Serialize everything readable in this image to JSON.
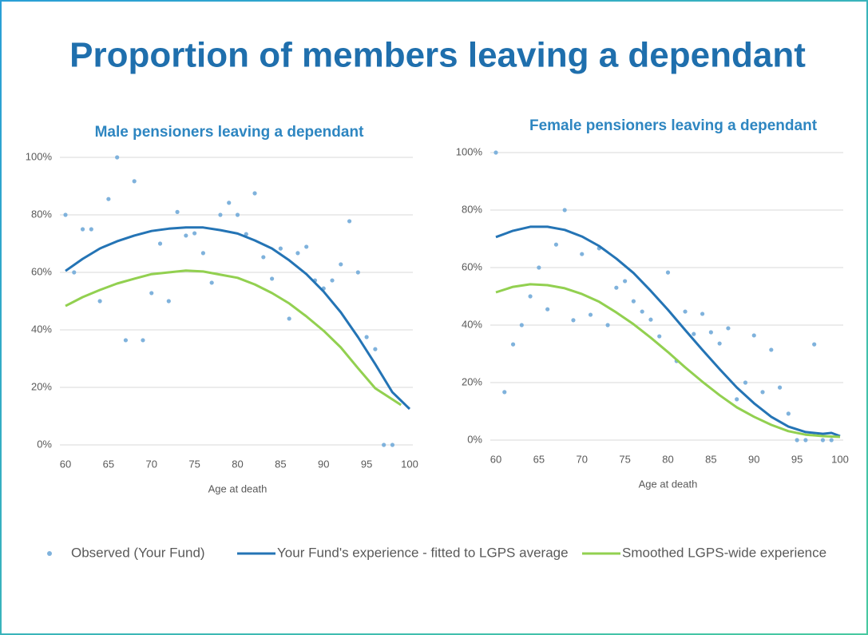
{
  "title": "Proportion of members leaving a dependant",
  "chart_data": [
    {
      "type": "scatter",
      "title": "Male pensioners leaving a dependant",
      "xlabel": "Age at death",
      "xlim": [
        60,
        100
      ],
      "xticks": [
        60,
        65,
        70,
        75,
        80,
        85,
        90,
        95,
        100
      ],
      "ylim": [
        0,
        100
      ],
      "yticks": [
        {
          "value": 0,
          "label": "0%"
        },
        {
          "value": 20,
          "label": "20%"
        },
        {
          "value": 40,
          "label": "40%"
        },
        {
          "value": 60,
          "label": "60%"
        },
        {
          "value": 80,
          "label": "80%"
        },
        {
          "value": 100,
          "label": "100%"
        }
      ],
      "grid": true,
      "series": [
        {
          "name": "Observed (Your Fund)",
          "color": "#7fb2dc",
          "mode": "markers",
          "x": [
            60,
            61,
            62,
            63,
            64,
            65,
            66,
            67,
            68,
            69,
            70,
            71,
            72,
            73,
            74,
            75,
            76,
            77,
            78,
            79,
            80,
            81,
            82,
            83,
            84,
            85,
            86,
            87,
            88,
            89,
            90,
            91,
            92,
            93,
            94,
            95,
            96,
            97,
            98
          ],
          "values": [
            80,
            60,
            75,
            75,
            50,
            85.5,
            100,
            36.4,
            91.7,
            36.4,
            52.8,
            70,
            50,
            81,
            72.8,
            73.6,
            66.7,
            56.4,
            80,
            84.2,
            80,
            73.3,
            87.5,
            65.3,
            57.8,
            68.3,
            43.9,
            66.7,
            68.9,
            57.2,
            54.4,
            57.2,
            62.8,
            77.8,
            60,
            37.5,
            33.3,
            0,
            0
          ]
        },
        {
          "name": "Your Fund's experience - fitted to LGPS average",
          "color": "#2474b5",
          "mode": "lines",
          "x": [
            60,
            62,
            64,
            66,
            68,
            70,
            72,
            74,
            76,
            78,
            80,
            82,
            84,
            86,
            88,
            90,
            92,
            94,
            96,
            98,
            100
          ],
          "values": [
            60.5,
            64.7,
            68.3,
            70.8,
            72.8,
            74.4,
            75.2,
            75.6,
            75.6,
            74.7,
            73.5,
            71.1,
            68.3,
            64.2,
            59.4,
            53.3,
            46.1,
            37.5,
            28.1,
            18.3,
            12.5
          ]
        },
        {
          "name": "Smoothed LGPS-wide experience",
          "color": "#92d050",
          "mode": "lines",
          "x": [
            60,
            62,
            64,
            66,
            68,
            70,
            72,
            74,
            76,
            78,
            80,
            82,
            84,
            86,
            88,
            90,
            92,
            94,
            96,
            99
          ],
          "values": [
            48.3,
            51.4,
            53.9,
            56.1,
            57.8,
            59.4,
            60,
            60.6,
            60.3,
            59.2,
            58.1,
            55.8,
            52.8,
            49.2,
            44.7,
            39.7,
            33.9,
            26.7,
            19.7,
            13.9
          ]
        }
      ]
    },
    {
      "type": "scatter",
      "title": "Female pensioners leaving a dependant",
      "xlabel": "Age at death",
      "xlim": [
        60,
        100
      ],
      "xticks": [
        60,
        65,
        70,
        75,
        80,
        85,
        90,
        95,
        100
      ],
      "ylim": [
        0,
        100
      ],
      "yticks": [
        {
          "value": 0,
          "label": "0%"
        },
        {
          "value": 20,
          "label": "20%"
        },
        {
          "value": 40,
          "label": "40%"
        },
        {
          "value": 60,
          "label": "60%"
        },
        {
          "value": 80,
          "label": "80%"
        },
        {
          "value": 100,
          "label": "100%"
        }
      ],
      "grid": true,
      "series": [
        {
          "color": "#7fb2dc",
          "mode": "markers",
          "x": [
            60,
            61,
            62,
            63,
            64,
            65,
            66,
            67,
            68,
            69,
            70,
            71,
            72,
            73,
            74,
            75,
            76,
            77,
            78,
            79,
            80,
            81,
            82,
            83,
            84,
            85,
            86,
            87,
            88,
            89,
            90,
            91,
            92,
            93,
            94,
            95,
            96,
            97,
            98,
            99
          ],
          "values": [
            100,
            16.7,
            33.3,
            40,
            50,
            60,
            45.5,
            68,
            80,
            41.7,
            64.7,
            43.6,
            66.7,
            40,
            53,
            55.3,
            48.3,
            44.7,
            41.9,
            36.1,
            58.3,
            27.5,
            44.7,
            36.9,
            43.9,
            37.5,
            33.6,
            38.9,
            14.2,
            20,
            36.4,
            16.7,
            31.4,
            18.3,
            9.2,
            0,
            0,
            33.3,
            0,
            0
          ]
        },
        {
          "color": "#2474b5",
          "mode": "lines",
          "x": [
            60,
            62,
            64,
            66,
            68,
            70,
            72,
            74,
            76,
            78,
            80,
            82,
            84,
            86,
            88,
            90,
            92,
            94,
            96,
            98,
            99,
            100
          ],
          "values": [
            70.6,
            72.8,
            74.2,
            74.2,
            73.1,
            70.8,
            67.5,
            63.1,
            58.1,
            51.9,
            45.3,
            38.3,
            31.4,
            24.7,
            18.3,
            12.8,
            8.1,
            4.7,
            2.8,
            2.2,
            2.5,
            1.4
          ]
        },
        {
          "color": "#92d050",
          "mode": "lines",
          "x": [
            60,
            62,
            64,
            66,
            68,
            70,
            72,
            74,
            76,
            78,
            80,
            82,
            84,
            86,
            88,
            90,
            92,
            94,
            96,
            98,
            100
          ],
          "values": [
            51.4,
            53.3,
            54.2,
            53.9,
            52.8,
            50.8,
            48.1,
            44.4,
            40.3,
            35.6,
            30.6,
            25.3,
            20.3,
            15.6,
            11.4,
            8.1,
            5.3,
            3.1,
            1.9,
            1.4,
            1.1
          ]
        }
      ]
    }
  ]
}
